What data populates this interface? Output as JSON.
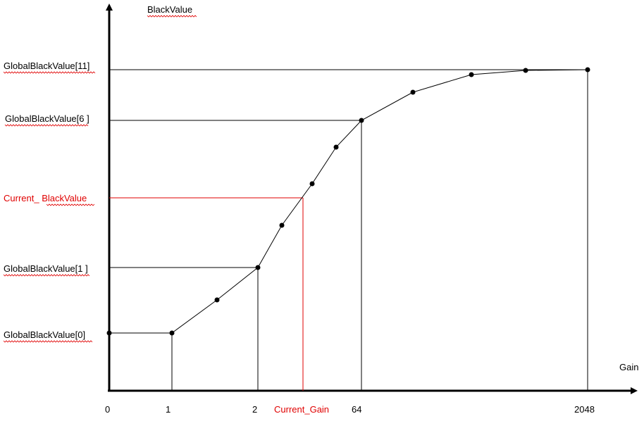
{
  "axes": {
    "y_title": "BlackValue",
    "x_title": "Gain"
  },
  "y_labels": {
    "gbv11": "GlobalBlackValue[11]",
    "gbv6": "GlobalBlackValue[6 ]",
    "current_black": "Current_ BlackValue",
    "gbv1": "GlobalBlackValue[1 ]",
    "gbv0": "GlobalBlackValue[0]"
  },
  "x_labels": {
    "x0": "0",
    "x1": "1",
    "x2": "2",
    "current_gain": "Current_Gain",
    "x64": "64",
    "x2048": "2048"
  },
  "colors": {
    "highlight": "#e00000",
    "line": "#000000"
  }
}
